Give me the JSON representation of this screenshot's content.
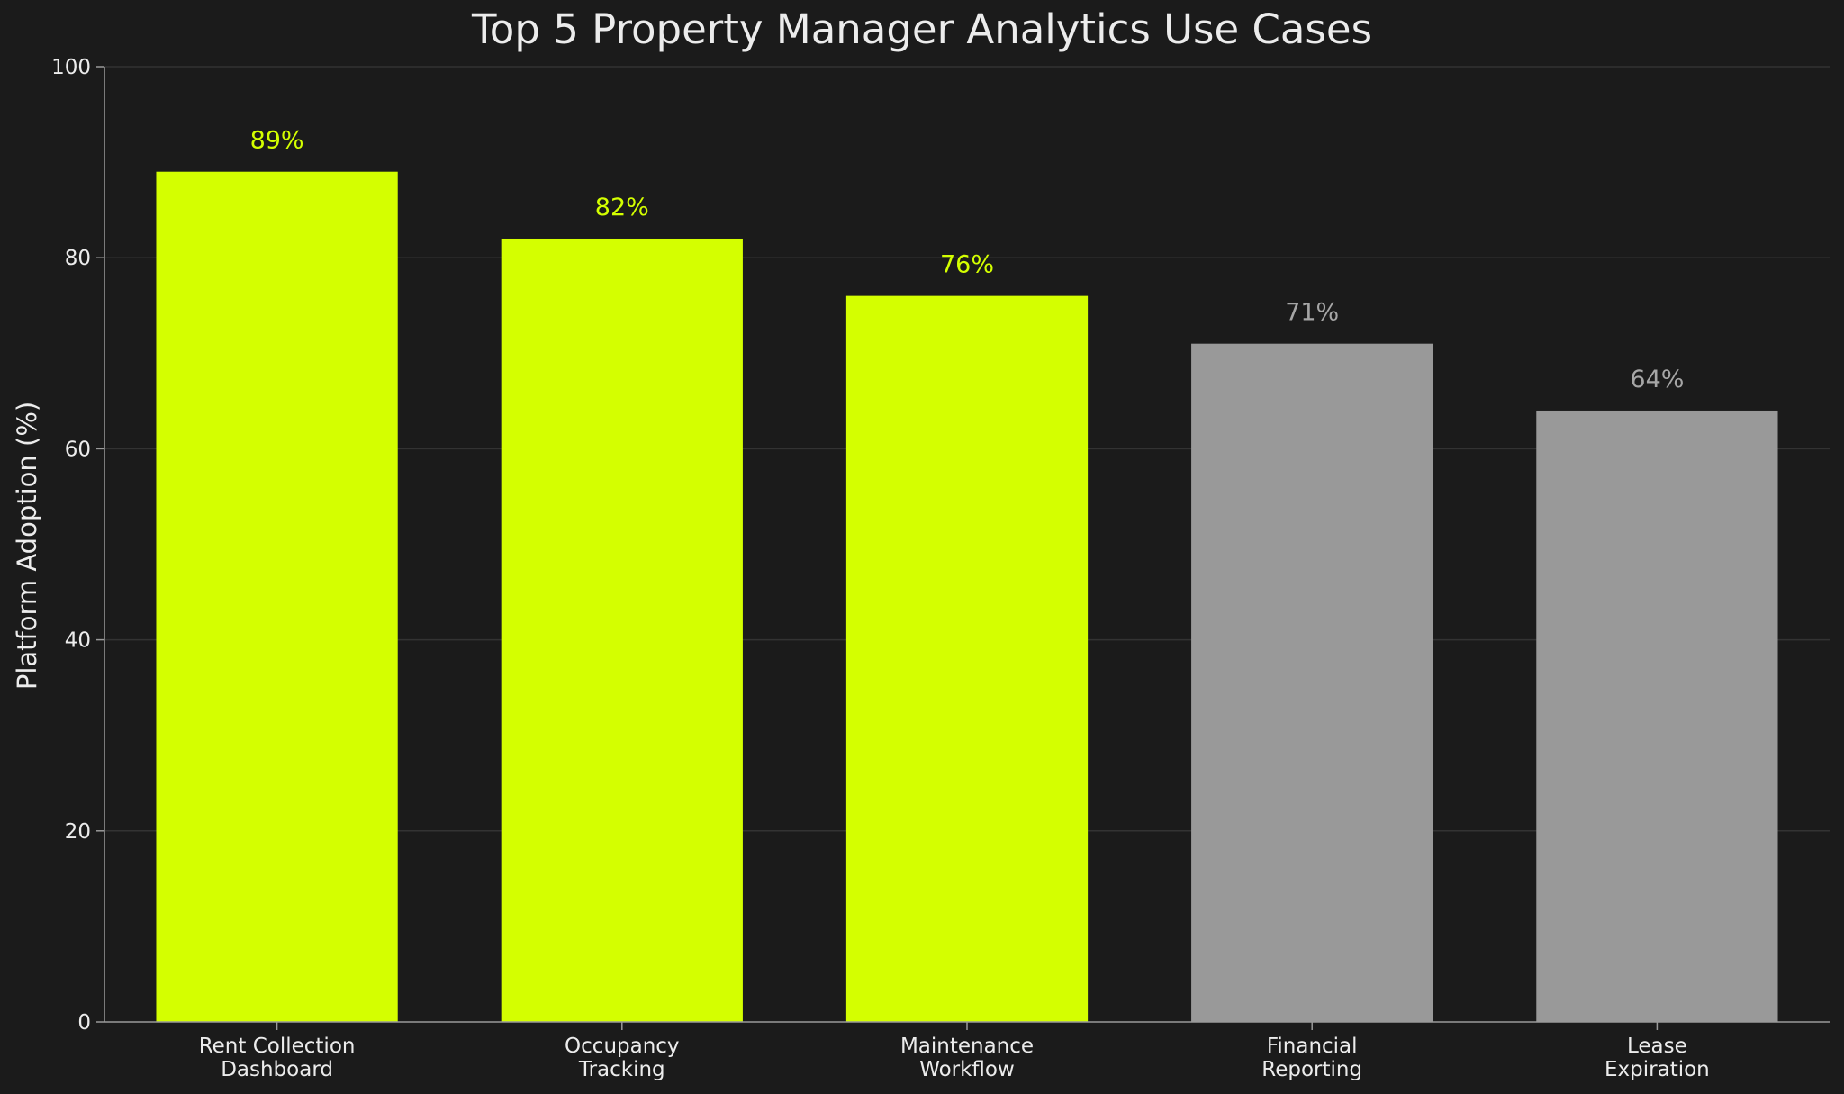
{
  "chart_data": {
    "type": "bar",
    "title": "Top 5 Property Manager Analytics Use Cases",
    "xlabel": "",
    "ylabel": "Platform Adoption (%)",
    "ylim": [
      0,
      100
    ],
    "yticks": [
      0,
      20,
      40,
      60,
      80,
      100
    ],
    "grid": true,
    "categories": [
      [
        "Rent Collection",
        "Dashboard"
      ],
      [
        "Occupancy",
        "Tracking"
      ],
      [
        "Maintenance",
        "Workflow"
      ],
      [
        "Financial",
        "Reporting"
      ],
      [
        "Lease",
        "Expiration"
      ]
    ],
    "values": [
      89,
      82,
      76,
      71,
      64
    ],
    "data_labels": [
      "89%",
      "82%",
      "76%",
      "71%",
      "64%"
    ],
    "highlighted": [
      true,
      true,
      true,
      false,
      false
    ],
    "colors": {
      "background": "#1b1b1b",
      "highlight_bar": "#d4ff00",
      "muted_bar": "#999999",
      "highlight_label": "#d4ff00",
      "muted_label": "#a6a6a6",
      "text": "#ececec",
      "grid": "#333333",
      "axis": "#9a9a9a"
    }
  }
}
